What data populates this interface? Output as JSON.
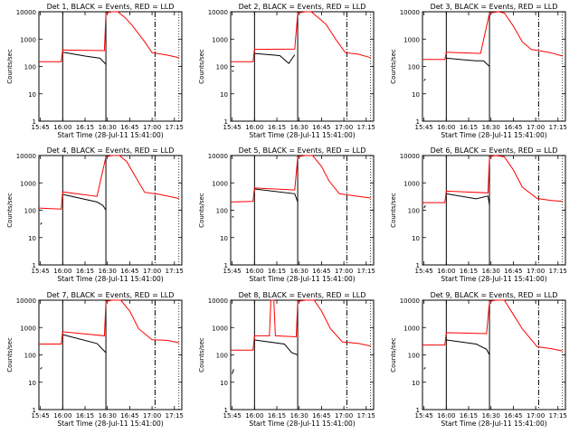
{
  "chart_data": {
    "type": "line",
    "layout": "3x3 grid of detector panels",
    "x_ticks": [
      "15:45",
      "16:00",
      "16:15",
      "16:30",
      "16:45",
      "17:00",
      "17:15"
    ],
    "xlabel": "Start Time (28-Jul-11 15:41:00)",
    "ylabel": "Counts/sec",
    "y_scale": "log",
    "ylim": [
      1,
      10000
    ],
    "y_ticks": [
      "1",
      "10",
      "100",
      "1000",
      "10000"
    ],
    "x_unit": "minutes since 15:45",
    "xlim": [
      -1,
      95
    ],
    "series_colors": {
      "events": "#000000",
      "lld": "#ff0000"
    },
    "panels": [
      {
        "title": "Det 1, BLACK = Events, RED = LLD",
        "lld": [
          [
            -1,
            150
          ],
          [
            14,
            150
          ],
          [
            15,
            400
          ],
          [
            43,
            380
          ],
          [
            44,
            9000
          ],
          [
            48,
            10000
          ],
          [
            52,
            10000
          ],
          [
            57,
            6000
          ],
          [
            62,
            3000
          ],
          [
            70,
            800
          ],
          [
            75,
            320
          ],
          [
            85,
            260
          ],
          [
            93,
            210
          ]
        ],
        "events": [
          [
            15,
            330
          ],
          [
            30,
            240
          ],
          [
            40,
            200
          ],
          [
            44,
            120
          ]
        ],
        "extra": [
          [
            -1,
            40
          ],
          [
            -1,
            50
          ],
          [
            -1,
            60
          ],
          [
            -1,
            45
          ]
        ]
      },
      {
        "title": "Det 2, BLACK = Events, RED = LLD",
        "lld": [
          [
            -1,
            150
          ],
          [
            14,
            150
          ],
          [
            15,
            420
          ],
          [
            42,
            430
          ],
          [
            44,
            9000
          ],
          [
            49,
            10000
          ],
          [
            53,
            10000
          ],
          [
            58,
            6000
          ],
          [
            63,
            3500
          ],
          [
            70,
            900
          ],
          [
            76,
            320
          ],
          [
            85,
            280
          ],
          [
            93,
            210
          ]
        ],
        "events": [
          [
            15,
            300
          ],
          [
            32,
            250
          ],
          [
            38,
            130
          ],
          [
            42,
            270
          ]
        ],
        "extra": [
          [
            0,
            70
          ],
          [
            1,
            65
          ]
        ]
      },
      {
        "title": "Det 3, BLACK = Events, RED = LLD",
        "lld": [
          [
            -1,
            180
          ],
          [
            14,
            180
          ],
          [
            15,
            330
          ],
          [
            38,
            300
          ],
          [
            44,
            9000
          ],
          [
            50,
            10000
          ],
          [
            54,
            9000
          ],
          [
            60,
            3000
          ],
          [
            66,
            800
          ],
          [
            72,
            420
          ],
          [
            85,
            320
          ],
          [
            93,
            240
          ]
        ],
        "events": [
          [
            15,
            200
          ],
          [
            35,
            160
          ],
          [
            40,
            160
          ],
          [
            44,
            100
          ]
        ],
        "extra": [
          [
            0,
            30
          ],
          [
            1,
            35
          ]
        ]
      },
      {
        "title": "Det 4, BLACK = Events, RED = LLD",
        "lld": [
          [
            -1,
            120
          ],
          [
            14,
            110
          ],
          [
            15,
            470
          ],
          [
            38,
            320
          ],
          [
            44,
            9000
          ],
          [
            48,
            10000
          ],
          [
            53,
            10000
          ],
          [
            58,
            6000
          ],
          [
            62,
            2500
          ],
          [
            70,
            450
          ],
          [
            80,
            380
          ],
          [
            93,
            270
          ]
        ],
        "events": [
          [
            15,
            380
          ],
          [
            38,
            200
          ],
          [
            42,
            150
          ],
          [
            44,
            100
          ]
        ],
        "extra": [
          [
            0,
            30
          ],
          [
            1,
            35
          ]
        ]
      },
      {
        "title": "Det 5, BLACK = Events, RED = LLD",
        "lld": [
          [
            -1,
            200
          ],
          [
            14,
            210
          ],
          [
            15,
            650
          ],
          [
            42,
            550
          ],
          [
            44,
            9000
          ],
          [
            49,
            10000
          ],
          [
            54,
            10000
          ],
          [
            60,
            4000
          ],
          [
            65,
            1200
          ],
          [
            72,
            400
          ],
          [
            85,
            320
          ],
          [
            93,
            280
          ]
        ],
        "events": [
          [
            15,
            600
          ],
          [
            42,
            400
          ],
          [
            44,
            200
          ]
        ],
        "extra": [
          [
            0,
            60
          ],
          [
            1,
            55
          ]
        ]
      },
      {
        "title": "Det 6, BLACK = Events, RED = LLD",
        "lld": [
          [
            -1,
            190
          ],
          [
            14,
            190
          ],
          [
            15,
            500
          ],
          [
            43,
            430
          ],
          [
            44,
            9000
          ],
          [
            48,
            10000
          ],
          [
            54,
            9000
          ],
          [
            60,
            3000
          ],
          [
            66,
            700
          ],
          [
            76,
            270
          ],
          [
            85,
            230
          ],
          [
            93,
            210
          ]
        ],
        "events": [
          [
            15,
            400
          ],
          [
            35,
            260
          ],
          [
            43,
            330
          ],
          [
            44,
            150
          ]
        ],
        "extra": [
          [
            0,
            120
          ],
          [
            1,
            150
          ]
        ]
      },
      {
        "title": "Det 7, BLACK = Events, RED = LLD",
        "lld": [
          [
            -1,
            250
          ],
          [
            14,
            250
          ],
          [
            15,
            700
          ],
          [
            43,
            500
          ],
          [
            44,
            9000
          ],
          [
            48,
            10000
          ],
          [
            54,
            10000
          ],
          [
            60,
            4000
          ],
          [
            66,
            900
          ],
          [
            75,
            360
          ],
          [
            85,
            340
          ],
          [
            93,
            280
          ]
        ],
        "events": [
          [
            15,
            550
          ],
          [
            38,
            260
          ],
          [
            44,
            120
          ]
        ],
        "extra": [
          [
            0,
            30
          ],
          [
            1,
            35
          ]
        ]
      },
      {
        "title": "Det 8, BLACK = Events, RED = LLD",
        "lld": [
          [
            -1,
            150
          ],
          [
            14,
            150
          ],
          [
            15,
            500
          ],
          [
            25,
            500
          ],
          [
            26,
            10000
          ],
          [
            28,
            10000
          ],
          [
            29,
            500
          ],
          [
            43,
            460
          ],
          [
            44,
            9000
          ],
          [
            49,
            10000
          ],
          [
            55,
            10000
          ],
          [
            60,
            4000
          ],
          [
            66,
            900
          ],
          [
            74,
            300
          ],
          [
            85,
            260
          ],
          [
            93,
            210
          ]
        ],
        "events": [
          [
            15,
            350
          ],
          [
            35,
            250
          ],
          [
            40,
            120
          ],
          [
            44,
            100
          ]
        ],
        "extra": [
          [
            0,
            20
          ],
          [
            1,
            30
          ]
        ]
      },
      {
        "title": "Det 9, BLACK = Events, RED = LLD",
        "lld": [
          [
            -1,
            230
          ],
          [
            14,
            230
          ],
          [
            15,
            650
          ],
          [
            42,
            600
          ],
          [
            44,
            9000
          ],
          [
            48,
            10000
          ],
          [
            54,
            10000
          ],
          [
            60,
            3000
          ],
          [
            66,
            900
          ],
          [
            76,
            200
          ],
          [
            85,
            170
          ],
          [
            93,
            140
          ]
        ],
        "events": [
          [
            15,
            350
          ],
          [
            35,
            250
          ],
          [
            42,
            160
          ],
          [
            44,
            100
          ]
        ],
        "extra": [
          [
            0,
            30
          ],
          [
            1,
            35
          ]
        ]
      }
    ]
  }
}
